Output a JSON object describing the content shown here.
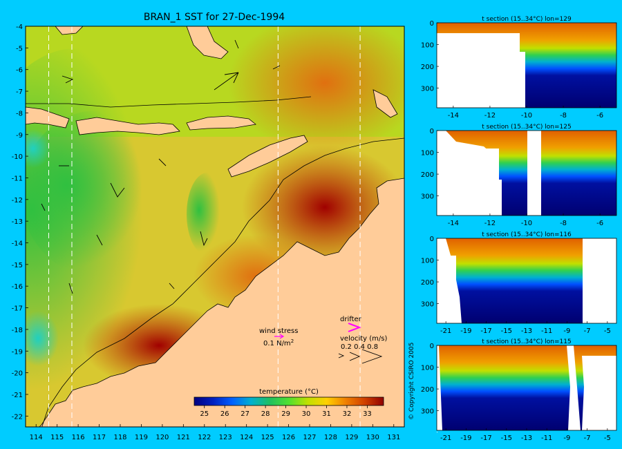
{
  "main_map": {
    "title": "BRAN_1 SST for 27-Dec-1994",
    "lon_ticks": [
      "114",
      "115",
      "116",
      "117",
      "118",
      "119",
      "120",
      "121",
      "122",
      "123",
      "124",
      "125",
      "126",
      "127",
      "128",
      "129",
      "130",
      "131"
    ],
    "lat_ticks": [
      "-4",
      "-5",
      "-6",
      "-7",
      "-8",
      "-9",
      "-10",
      "-11",
      "-12",
      "-13",
      "-14",
      "-15",
      "-16",
      "-17",
      "-18",
      "-19",
      "-20",
      "-21",
      "-22"
    ],
    "section_lons": [
      114.6,
      115.7,
      125.5,
      129.4
    ],
    "wind_stress": {
      "label": "wind stress",
      "scale": "0.1 N/m",
      "sup": "2",
      "color": "#ff00ff"
    },
    "drifter": {
      "label": "drifter",
      "color": "#ff00ff"
    },
    "velocity": {
      "label": "velocity (m/s)",
      "scale": "0.2 0.4 0.8"
    },
    "colorbar": {
      "label": "temperature (°C)",
      "ticks": [
        "25",
        "26",
        "27",
        "28",
        "29",
        "30",
        "31",
        "32",
        "33"
      ],
      "colors": [
        "#000080",
        "#0020c0",
        "#0060ff",
        "#00b0d0",
        "#20c060",
        "#50e030",
        "#c0e000",
        "#ffd000",
        "#f08000",
        "#d04000",
        "#900000"
      ]
    }
  },
  "sections": [
    {
      "title": "t section (15..34°C) lon=129",
      "x_ticks": [
        "-14",
        "-12",
        "-10",
        "-8",
        "-6"
      ],
      "y_ticks": [
        "0",
        "100",
        "200",
        "300"
      ]
    },
    {
      "title": "t section (15..34°C) lon=125",
      "x_ticks": [
        "-14",
        "-12",
        "-10",
        "-8",
        "-6"
      ],
      "y_ticks": [
        "0",
        "100",
        "200",
        "300"
      ]
    },
    {
      "title": "t section (15..34°C) lon=116",
      "x_ticks": [
        "-21",
        "-19",
        "-17",
        "-15",
        "-13",
        "-11",
        "-9",
        "-7",
        "-5"
      ],
      "y_ticks": [
        "0",
        "100",
        "200",
        "300"
      ]
    },
    {
      "title": "t section (15..34°C) lon=115",
      "x_ticks": [
        "-21",
        "-19",
        "-17",
        "-15",
        "-13",
        "-11",
        "-9",
        "-7",
        "-5"
      ],
      "y_ticks": [
        "0",
        "100",
        "200",
        "300"
      ]
    }
  ],
  "copyright": "© Copyright CSIRO 2005",
  "chart_data": {
    "type": "heatmap",
    "title": "BRAN_1 SST for 27-Dec-1994",
    "xlabel": "",
    "ylabel": "",
    "xlim": [
      113.5,
      131.5
    ],
    "ylim": [
      -22.5,
      -4
    ],
    "color_range": [
      24.5,
      33.8
    ],
    "colorbar_label": "temperature (°C)"
  }
}
